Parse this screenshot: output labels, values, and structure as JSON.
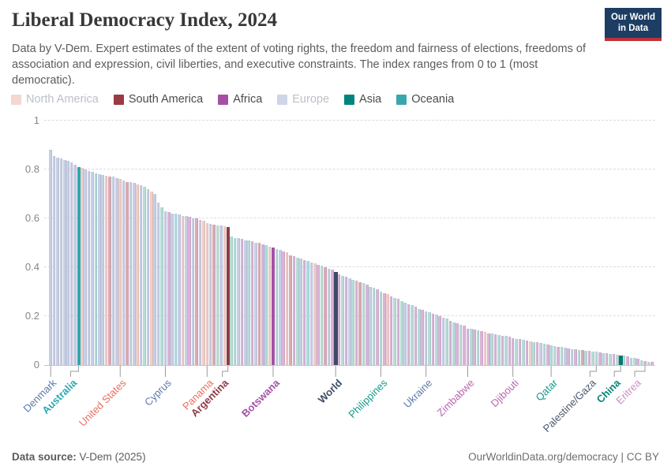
{
  "header": {
    "title": "Liberal Democracy Index, 2024",
    "subtitle": "Data by V-Dem. Expert estimates of the extent of voting rights, the freedom and fairness of elections, freedoms of association and expression, civil liberties, and executive constraints. The index ranges from 0 to 1 (most democratic).",
    "logo_line1": "Our World",
    "logo_line2": "in Data",
    "logo_bg": "#1d3d63",
    "logo_accent": "#bf3036"
  },
  "legend": [
    {
      "label": "North America",
      "swatch": "#f5d7d1",
      "muted": true
    },
    {
      "label": "South America",
      "swatch": "#9a3a42",
      "muted": false
    },
    {
      "label": "Africa",
      "swatch": "#a74fa5",
      "muted": false
    },
    {
      "label": "Europe",
      "swatch": "#cdd5e6",
      "muted": true
    },
    {
      "label": "Asia",
      "swatch": "#00847d",
      "muted": false
    },
    {
      "label": "Oceania",
      "swatch": "#38a7b0",
      "muted": false
    }
  ],
  "footer": {
    "source_label": "Data source:",
    "source_value": " V-Dem (2025)",
    "right": "OurWorldinData.org/democracy | CC BY"
  },
  "chart_data": {
    "type": "bar",
    "title": "Liberal Democracy Index, 2024",
    "xlabel": "",
    "ylabel": "",
    "ylim": [
      0,
      1
    ],
    "yticks": [
      0,
      0.2,
      0.4,
      0.6,
      0.8,
      1
    ],
    "grid": "dashed-horizontal",
    "legend_position": "top",
    "region_colors_faded": {
      "NA": "#f0cdc7",
      "SA": "#dbaab2",
      "AF": "#d9b4d8",
      "EU": "#c7cfe4",
      "AS": "#b6dcd6",
      "OC": "#aedae0",
      "W": "#9aa5b5"
    },
    "region_colors_full": {
      "NA": "#e8705f",
      "SA": "#8e3b45",
      "AF": "#a352a5",
      "EU": "#5b79ab",
      "AS": "#057a72",
      "OC": "#2aa8b2",
      "W": "#3e4c63"
    },
    "bars": [
      [
        0.88,
        "EU"
      ],
      [
        0.855,
        "EU"
      ],
      [
        0.85,
        "EU"
      ],
      [
        0.845,
        "EU"
      ],
      [
        0.84,
        "EU"
      ],
      [
        0.835,
        "EU"
      ],
      [
        0.83,
        "EU"
      ],
      [
        0.82,
        "EU"
      ],
      [
        0.81,
        "OC",
        1
      ],
      [
        0.805,
        "NA"
      ],
      [
        0.8,
        "EU"
      ],
      [
        0.795,
        "EU"
      ],
      [
        0.79,
        "EU"
      ],
      [
        0.785,
        "OC"
      ],
      [
        0.78,
        "EU"
      ],
      [
        0.778,
        "EU"
      ],
      [
        0.775,
        "NA"
      ],
      [
        0.772,
        "SA"
      ],
      [
        0.77,
        "EU"
      ],
      [
        0.765,
        "EU"
      ],
      [
        0.76,
        "NA"
      ],
      [
        0.755,
        "EU"
      ],
      [
        0.75,
        "SA"
      ],
      [
        0.748,
        "EU"
      ],
      [
        0.745,
        "EU"
      ],
      [
        0.74,
        "NA"
      ],
      [
        0.735,
        "EU"
      ],
      [
        0.73,
        "AS"
      ],
      [
        0.72,
        "EU"
      ],
      [
        0.71,
        "NA"
      ],
      [
        0.7,
        "EU"
      ],
      [
        0.665,
        "EU"
      ],
      [
        0.645,
        "AS"
      ],
      [
        0.63,
        "EU"
      ],
      [
        0.625,
        "AF"
      ],
      [
        0.62,
        "EU"
      ],
      [
        0.62,
        "OC"
      ],
      [
        0.615,
        "EU"
      ],
      [
        0.61,
        "NA"
      ],
      [
        0.61,
        "EU"
      ],
      [
        0.605,
        "AF"
      ],
      [
        0.6,
        "EU"
      ],
      [
        0.6,
        "SA"
      ],
      [
        0.595,
        "EU"
      ],
      [
        0.59,
        "NA"
      ],
      [
        0.58,
        "NA"
      ],
      [
        0.578,
        "EU"
      ],
      [
        0.575,
        "SA"
      ],
      [
        0.57,
        "AS"
      ],
      [
        0.57,
        "EU"
      ],
      [
        0.568,
        "NA"
      ],
      [
        0.565,
        "SA",
        1
      ],
      [
        0.525,
        "AS"
      ],
      [
        0.52,
        "AS"
      ],
      [
        0.52,
        "EU"
      ],
      [
        0.515,
        "AF"
      ],
      [
        0.51,
        "EU"
      ],
      [
        0.51,
        "AS"
      ],
      [
        0.505,
        "AF"
      ],
      [
        0.5,
        "EU"
      ],
      [
        0.5,
        "SA"
      ],
      [
        0.495,
        "AF"
      ],
      [
        0.49,
        "OC"
      ],
      [
        0.485,
        "NA"
      ],
      [
        0.48,
        "AF",
        1
      ],
      [
        0.475,
        "AS"
      ],
      [
        0.47,
        "EU"
      ],
      [
        0.465,
        "AF"
      ],
      [
        0.46,
        "NA"
      ],
      [
        0.45,
        "SA"
      ],
      [
        0.445,
        "AF"
      ],
      [
        0.44,
        "AS"
      ],
      [
        0.435,
        "EU"
      ],
      [
        0.43,
        "AF"
      ],
      [
        0.425,
        "OC"
      ],
      [
        0.42,
        "EU"
      ],
      [
        0.415,
        "NA"
      ],
      [
        0.41,
        "AF"
      ],
      [
        0.405,
        "AS"
      ],
      [
        0.4,
        "SA"
      ],
      [
        0.395,
        "EU"
      ],
      [
        0.39,
        "AF"
      ],
      [
        0.38,
        "W",
        1
      ],
      [
        0.37,
        "AF"
      ],
      [
        0.365,
        "AS"
      ],
      [
        0.36,
        "AF"
      ],
      [
        0.355,
        "EU"
      ],
      [
        0.35,
        "AS"
      ],
      [
        0.345,
        "AF"
      ],
      [
        0.34,
        "SA"
      ],
      [
        0.335,
        "AS"
      ],
      [
        0.33,
        "AF"
      ],
      [
        0.32,
        "EU"
      ],
      [
        0.315,
        "AS"
      ],
      [
        0.31,
        "AF"
      ],
      [
        0.3,
        "AS"
      ],
      [
        0.295,
        "AF"
      ],
      [
        0.29,
        "NA"
      ],
      [
        0.28,
        "AF"
      ],
      [
        0.275,
        "AS"
      ],
      [
        0.27,
        "AF"
      ],
      [
        0.26,
        "AS"
      ],
      [
        0.255,
        "EU"
      ],
      [
        0.25,
        "AF"
      ],
      [
        0.245,
        "AS"
      ],
      [
        0.24,
        "AF"
      ],
      [
        0.23,
        "AS"
      ],
      [
        0.225,
        "AF"
      ],
      [
        0.22,
        "EU"
      ],
      [
        0.215,
        "AS"
      ],
      [
        0.21,
        "AF"
      ],
      [
        0.205,
        "AS"
      ],
      [
        0.2,
        "AF"
      ],
      [
        0.195,
        "EU"
      ],
      [
        0.19,
        "AS"
      ],
      [
        0.18,
        "AF"
      ],
      [
        0.175,
        "AS"
      ],
      [
        0.17,
        "AF"
      ],
      [
        0.165,
        "AS"
      ],
      [
        0.16,
        "AF"
      ],
      [
        0.15,
        "AF"
      ],
      [
        0.148,
        "AS"
      ],
      [
        0.145,
        "AF"
      ],
      [
        0.142,
        "AS"
      ],
      [
        0.14,
        "AF"
      ],
      [
        0.135,
        "NA"
      ],
      [
        0.13,
        "AF"
      ],
      [
        0.128,
        "AS"
      ],
      [
        0.125,
        "AF"
      ],
      [
        0.122,
        "AS"
      ],
      [
        0.12,
        "AF"
      ],
      [
        0.118,
        "AS"
      ],
      [
        0.115,
        "AF"
      ],
      [
        0.11,
        "AF"
      ],
      [
        0.108,
        "AS"
      ],
      [
        0.105,
        "AF"
      ],
      [
        0.103,
        "AS"
      ],
      [
        0.1,
        "AF"
      ],
      [
        0.098,
        "NA"
      ],
      [
        0.095,
        "AS"
      ],
      [
        0.092,
        "AF"
      ],
      [
        0.09,
        "EU"
      ],
      [
        0.088,
        "AS"
      ],
      [
        0.085,
        "AF"
      ],
      [
        0.08,
        "AS"
      ],
      [
        0.078,
        "AS"
      ],
      [
        0.075,
        "AF"
      ],
      [
        0.073,
        "AS"
      ],
      [
        0.07,
        "EU"
      ],
      [
        0.068,
        "AF"
      ],
      [
        0.065,
        "AS"
      ],
      [
        0.063,
        "AF"
      ],
      [
        0.06,
        "AS"
      ],
      [
        0.06,
        "SA"
      ],
      [
        0.058,
        "AS"
      ],
      [
        0.057,
        "AF"
      ],
      [
        0.056,
        "AS"
      ],
      [
        0.055,
        "AS"
      ],
      [
        0.053,
        "AF"
      ],
      [
        0.05,
        "AS"
      ],
      [
        0.048,
        "AF"
      ],
      [
        0.046,
        "AS"
      ],
      [
        0.045,
        "AF"
      ],
      [
        0.042,
        "AS"
      ],
      [
        0.04,
        "AS",
        1
      ],
      [
        0.038,
        "AS"
      ],
      [
        0.035,
        "AF"
      ],
      [
        0.03,
        "AS"
      ],
      [
        0.028,
        "AS"
      ],
      [
        0.025,
        "AF"
      ],
      [
        0.02,
        "AS"
      ],
      [
        0.015,
        "AF"
      ],
      [
        0.013,
        "AS"
      ],
      [
        0.012,
        "AF"
      ]
    ],
    "labeled_bars": [
      {
        "index": 0,
        "label": "Denmark",
        "value": 0.88,
        "color": "#5b79ab",
        "bold": false,
        "dx": 0
      },
      {
        "index": 8,
        "label": "Australia",
        "value": 0.81,
        "color": "#2aa8b2",
        "bold": true,
        "dx": -10
      },
      {
        "index": 20,
        "label": "United States",
        "value": 0.76,
        "color": "#e8705f",
        "bold": false,
        "dx": 0
      },
      {
        "index": 33,
        "label": "Cyprus",
        "value": 0.63,
        "color": "#5b79ab",
        "bold": false,
        "dx": 0
      },
      {
        "index": 45,
        "label": "Panama",
        "value": 0.58,
        "color": "#e8705f",
        "bold": false,
        "dx": 0
      },
      {
        "index": 51,
        "label": "Argentina",
        "value": 0.565,
        "color": "#8e3a44",
        "bold": true,
        "dx": -7
      },
      {
        "index": 64,
        "label": "Botswana",
        "value": 0.48,
        "color": "#a352a5",
        "bold": true,
        "dx": 0
      },
      {
        "index": 82,
        "label": "World",
        "value": 0.38,
        "color": "#3d4e66",
        "bold": true,
        "dx": 0
      },
      {
        "index": 95,
        "label": "Philippines",
        "value": 0.3,
        "color": "#129a8c",
        "bold": false,
        "dx": 0
      },
      {
        "index": 108,
        "label": "Ukraine",
        "value": 0.22,
        "color": "#5b79ab",
        "bold": false,
        "dx": 0
      },
      {
        "index": 120,
        "label": "Zimbabwe",
        "value": 0.15,
        "color": "#bb63b3",
        "bold": false,
        "dx": 0
      },
      {
        "index": 133,
        "label": "Djibouti",
        "value": 0.11,
        "color": "#bb63b3",
        "bold": false,
        "dx": 0
      },
      {
        "index": 144,
        "label": "Qatar",
        "value": 0.08,
        "color": "#129a8c",
        "bold": false,
        "dx": 0
      },
      {
        "index": 157,
        "label": "Palestine/Gaza",
        "value": 0.055,
        "color": "#4a576e",
        "bold": false,
        "dx": -8
      },
      {
        "index": 164,
        "label": "China",
        "value": 0.04,
        "color": "#06837b",
        "bold": true,
        "dx": -8
      },
      {
        "index": 171,
        "label": "Eritrea",
        "value": 0.015,
        "color": "#cf8cc7",
        "bold": false,
        "dx": -13
      }
    ]
  }
}
